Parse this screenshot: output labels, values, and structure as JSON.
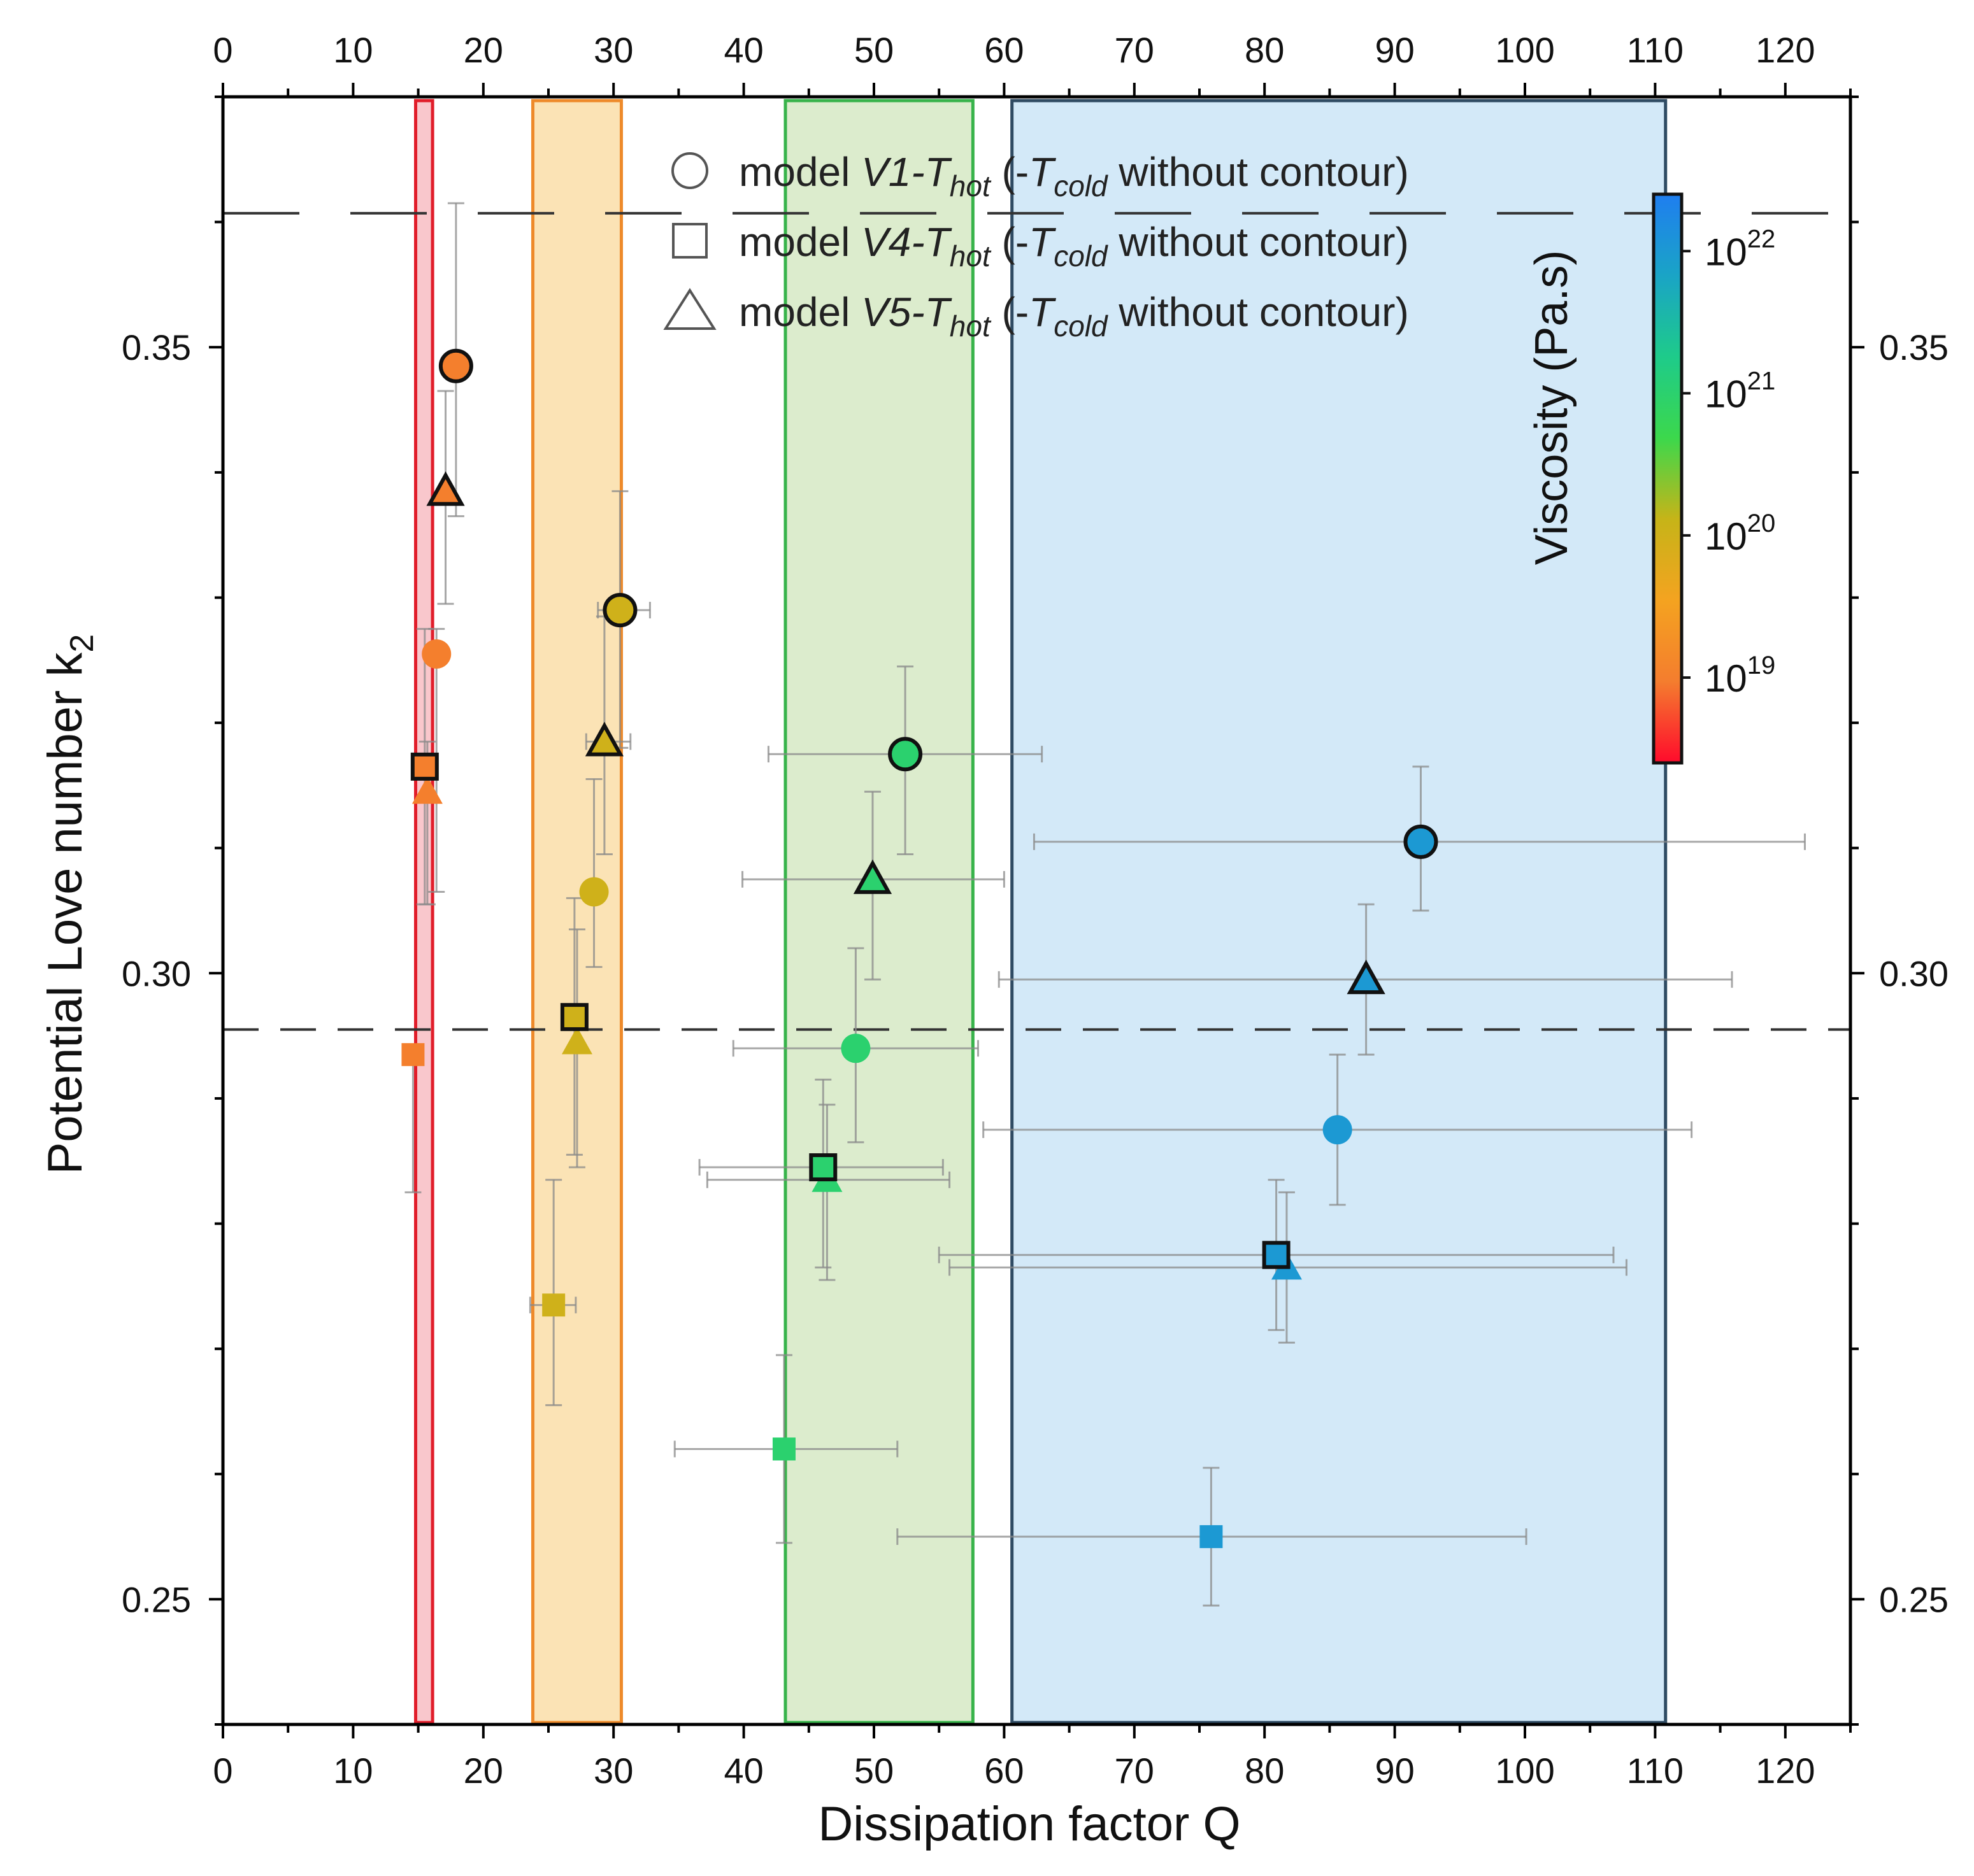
{
  "chart_data": {
    "type": "scatter",
    "xlabel": "Dissipation factor Q",
    "ylabel": "Potential Love number k",
    "ylabel_sub": "2",
    "xlim": [
      0,
      125
    ],
    "ylim": [
      0.24,
      0.37
    ],
    "x_ticks": [
      0,
      10,
      20,
      30,
      40,
      50,
      60,
      70,
      80,
      90,
      100,
      110,
      120
    ],
    "y_ticks": [
      0.25,
      0.3,
      0.35
    ],
    "x_tick_labels": [
      "0",
      "10",
      "20",
      "30",
      "40",
      "50",
      "60",
      "70",
      "80",
      "90",
      "100",
      "110",
      "120"
    ],
    "y_tick_labels": [
      "0.25",
      "0.30",
      "0.35"
    ],
    "reference_lines": [
      {
        "y": 0.3607,
        "style": "long-dash"
      },
      {
        "y": 0.2955,
        "style": "dash"
      }
    ],
    "bands": [
      {
        "x0": 14.8,
        "x1": 16.1,
        "fill": "#f9c7cc",
        "stroke": "#e11d2a"
      },
      {
        "x0": 23.8,
        "x1": 30.6,
        "fill": "#fbe3b5",
        "stroke": "#ee8a2a"
      },
      {
        "x0": 43.2,
        "x1": 57.6,
        "fill": "#dceccd",
        "stroke": "#37b34a"
      },
      {
        "x0": 60.6,
        "x1": 110.8,
        "fill": "#d3e9f8",
        "stroke": "#2f4b63"
      }
    ],
    "legend": [
      {
        "marker": "circle",
        "prefix": "model ",
        "model": "V1",
        "hot": "hot",
        "cold": "cold",
        "suffix": " without contour)"
      },
      {
        "marker": "square",
        "prefix": "model ",
        "model": "V4",
        "hot": "hot",
        "cold": "cold",
        "suffix": " without contour)"
      },
      {
        "marker": "triangle",
        "prefix": "model ",
        "model": "V5",
        "hot": "hot",
        "cold": "cold",
        "suffix": " without contour)"
      }
    ],
    "colorbar": {
      "title": "Viscosity (Pa.s)",
      "labels": [
        {
          "base": "10",
          "exp": "19",
          "log": 19
        },
        {
          "base": "10",
          "exp": "20",
          "log": 20
        },
        {
          "base": "10",
          "exp": "21",
          "log": 21
        },
        {
          "base": "10",
          "exp": "22",
          "log": 22
        }
      ],
      "range": [
        18.4,
        22.4
      ],
      "stops": [
        "#ff0a2c",
        "#f47d2e",
        "#f4a320",
        "#c6b418",
        "#3cd84c",
        "#1ecb8a",
        "#1aa4c6",
        "#1f7ef0"
      ]
    },
    "series": [
      {
        "name": "model V1 T_hot",
        "marker": "circle",
        "contour": true,
        "points": [
          {
            "x": 17.9,
            "y": 0.3485,
            "xerr": [
              17.9,
              17.9
            ],
            "yerr": [
              0.3365,
              0.3615
            ],
            "viscosity": 19
          },
          {
            "x": 30.5,
            "y": 0.329,
            "xerr": [
              28.8,
              32.8
            ],
            "yerr": [
              0.318,
              0.3385
            ],
            "viscosity": 20
          },
          {
            "x": 52.4,
            "y": 0.3175,
            "xerr": [
              41.9,
              62.9
            ],
            "yerr": [
              0.3095,
              0.3245
            ],
            "viscosity": 21
          },
          {
            "x": 92.0,
            "y": 0.3105,
            "xerr": [
              62.3,
              121.5
            ],
            "yerr": [
              0.305,
              0.3165
            ],
            "viscosity": 22
          }
        ]
      },
      {
        "name": "model V1 T_cold",
        "marker": "circle",
        "contour": false,
        "points": [
          {
            "x": 16.4,
            "y": 0.3255,
            "xerr": [
              16.4,
              16.4
            ],
            "yerr": [
              0.3065,
              0.3275
            ],
            "viscosity": 19
          },
          {
            "x": 28.5,
            "y": 0.3065,
            "xerr": [
              28.5,
              28.5
            ],
            "yerr": [
              0.3005,
              0.3155
            ],
            "viscosity": 20
          },
          {
            "x": 48.6,
            "y": 0.294,
            "xerr": [
              39.2,
              58.0
            ],
            "yerr": [
              0.2865,
              0.302
            ],
            "viscosity": 21
          },
          {
            "x": 85.6,
            "y": 0.2875,
            "xerr": [
              58.4,
              112.8
            ],
            "yerr": [
              0.2815,
              0.2935
            ],
            "viscosity": 22
          }
        ]
      },
      {
        "name": "model V4 T_hot",
        "marker": "square",
        "contour": true,
        "points": [
          {
            "x": 15.5,
            "y": 0.3165,
            "xerr": [
              15.5,
              15.5
            ],
            "yerr": [
              0.3055,
              0.3275
            ],
            "viscosity": 19
          },
          {
            "x": 27.0,
            "y": 0.2965,
            "xerr": [
              27.0,
              27.0
            ],
            "yerr": [
              0.2855,
              0.306
            ],
            "viscosity": 20
          },
          {
            "x": 46.1,
            "y": 0.2845,
            "xerr": [
              36.6,
              55.3
            ],
            "yerr": [
              0.2765,
              0.2915
            ],
            "viscosity": 21
          },
          {
            "x": 80.9,
            "y": 0.2775,
            "xerr": [
              55.0,
              106.8
            ],
            "yerr": [
              0.2715,
              0.2835
            ],
            "viscosity": 22
          }
        ]
      },
      {
        "name": "model V4 T_cold",
        "marker": "square",
        "contour": false,
        "points": [
          {
            "x": 14.6,
            "y": 0.2935,
            "xerr": [
              14.6,
              14.6
            ],
            "yerr": [
              0.2825,
              0.2935
            ],
            "viscosity": 19
          },
          {
            "x": 25.4,
            "y": 0.2735,
            "xerr": [
              23.6,
              27.1
            ],
            "yerr": [
              0.2655,
              0.2835
            ],
            "viscosity": 20
          },
          {
            "x": 43.1,
            "y": 0.262,
            "xerr": [
              34.7,
              51.8
            ],
            "yerr": [
              0.2545,
              0.2695
            ],
            "viscosity": 21
          },
          {
            "x": 75.9,
            "y": 0.255,
            "xerr": [
              51.8,
              100.1
            ],
            "yerr": [
              0.2495,
              0.2605
            ],
            "viscosity": 22
          }
        ]
      },
      {
        "name": "model V5 T_hot",
        "marker": "triangle",
        "contour": true,
        "points": [
          {
            "x": 17.1,
            "y": 0.3385,
            "xerr": [
              17.1,
              17.1
            ],
            "yerr": [
              0.3295,
              0.3465
            ],
            "viscosity": 19
          },
          {
            "x": 29.3,
            "y": 0.3185,
            "xerr": [
              27.9,
              31.3
            ],
            "yerr": [
              0.3095,
              0.3285
            ],
            "viscosity": 20
          },
          {
            "x": 49.9,
            "y": 0.3075,
            "xerr": [
              39.9,
              60.0
            ],
            "yerr": [
              0.2995,
              0.3145
            ],
            "viscosity": 21
          },
          {
            "x": 87.8,
            "y": 0.2995,
            "xerr": [
              59.6,
              115.9
            ],
            "yerr": [
              0.2935,
              0.3055
            ],
            "viscosity": 22
          }
        ]
      },
      {
        "name": "model V5 T_cold",
        "marker": "triangle",
        "contour": false,
        "points": [
          {
            "x": 15.7,
            "y": 0.3145,
            "xerr": [
              15.7,
              15.7
            ],
            "yerr": [
              0.3055,
              0.3185
            ],
            "viscosity": 19
          },
          {
            "x": 27.2,
            "y": 0.2945,
            "xerr": [
              27.2,
              27.2
            ],
            "yerr": [
              0.2845,
              0.3035
            ],
            "viscosity": 20
          },
          {
            "x": 46.4,
            "y": 0.2835,
            "xerr": [
              37.2,
              55.8
            ],
            "yerr": [
              0.2755,
              0.2895
            ],
            "viscosity": 21
          },
          {
            "x": 81.7,
            "y": 0.2765,
            "xerr": [
              55.8,
              107.8
            ],
            "yerr": [
              0.2705,
              0.2825
            ],
            "viscosity": 22
          }
        ]
      }
    ]
  }
}
